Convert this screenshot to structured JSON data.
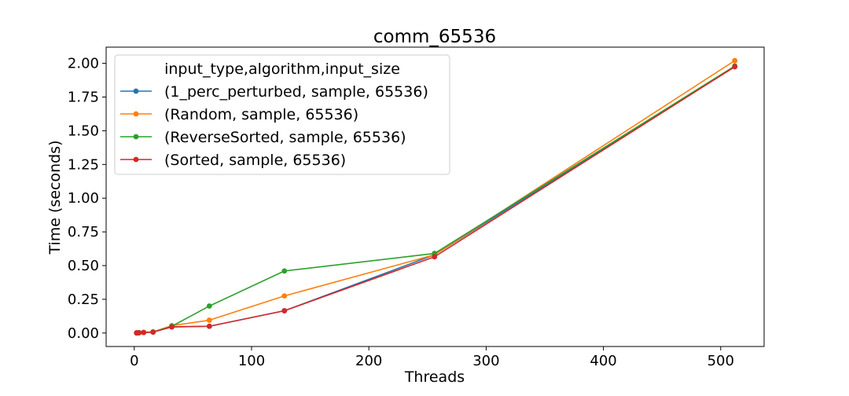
{
  "chart_data": {
    "type": "line",
    "title": "comm_65536",
    "xlabel": "Threads",
    "ylabel": "Time (seconds)",
    "xlim": [
      -24,
      537
    ],
    "ylim": [
      -0.1,
      2.12
    ],
    "xticks": [
      0,
      100,
      200,
      300,
      400,
      500
    ],
    "yticks": [
      0.0,
      0.25,
      0.5,
      0.75,
      1.0,
      1.25,
      1.5,
      1.75,
      2.0
    ],
    "xtick_labels": [
      "0",
      "100",
      "200",
      "300",
      "400",
      "500"
    ],
    "ytick_labels": [
      "0.00",
      "0.25",
      "0.50",
      "0.75",
      "1.00",
      "1.25",
      "1.50",
      "1.75",
      "2.00"
    ],
    "grid": false,
    "legend": {
      "title": "input_type,algorithm,input_size",
      "placement": "upper-left"
    },
    "x": [
      2,
      4,
      8,
      16,
      32,
      64,
      128,
      256,
      512
    ],
    "series": [
      {
        "name": "(1_perc_perturbed, sample, 65536)",
        "color": "#1f77b4",
        "values": [
          0.001,
          0.002,
          0.004,
          0.007,
          0.045,
          0.05,
          0.165,
          0.58,
          1.975
        ]
      },
      {
        "name": "(Random, sample, 65536)",
        "color": "#ff7f0e",
        "values": [
          0.001,
          0.002,
          0.004,
          0.008,
          0.055,
          0.095,
          0.275,
          0.58,
          2.02
        ]
      },
      {
        "name": "(ReverseSorted, sample, 65536)",
        "color": "#2ca02c",
        "values": [
          0.001,
          0.002,
          0.004,
          0.008,
          0.05,
          0.2,
          0.46,
          0.59,
          1.98
        ]
      },
      {
        "name": "(Sorted, sample, 65536)",
        "color": "#d62728",
        "values": [
          0.001,
          0.002,
          0.004,
          0.007,
          0.045,
          0.05,
          0.165,
          0.565,
          1.975
        ]
      }
    ]
  }
}
